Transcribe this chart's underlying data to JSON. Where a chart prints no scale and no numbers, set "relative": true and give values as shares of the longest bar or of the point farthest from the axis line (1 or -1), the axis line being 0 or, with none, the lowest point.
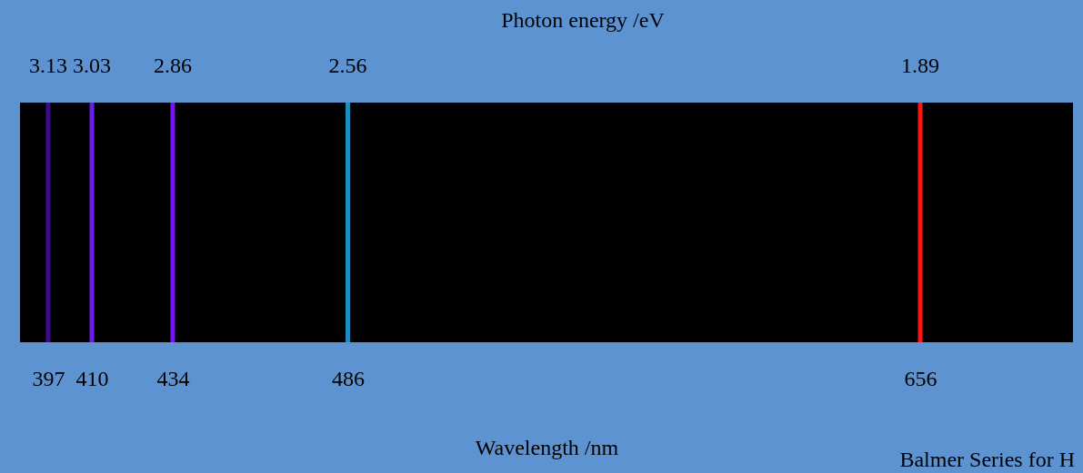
{
  "chart_data": {
    "type": "bar",
    "title": "Photon energy /eV",
    "xlabel": "Wavelength /nm",
    "x": [
      397,
      410,
      434,
      486,
      656
    ],
    "values": [
      1,
      1,
      1,
      1,
      1
    ],
    "colors": [
      "#3c0c8c",
      "#6a1cf0",
      "#7a12ff",
      "#1a8cc0",
      "#ff1414"
    ],
    "relative": true,
    "xlim": [
      390,
      700
    ],
    "xticks": [
      397,
      410,
      434,
      486,
      656
    ],
    "grid": false,
    "annotations": [
      {
        "text": "3.13",
        "x": 397,
        "y": 1
      },
      {
        "text": "3.03",
        "x": 410,
        "y": 1
      },
      {
        "text": "2.86",
        "x": 434,
        "y": 1
      },
      {
        "text": "2.56",
        "x": 486,
        "y": 1
      },
      {
        "text": "1.89",
        "x": 656,
        "y": 1
      },
      "Balmer Series for H"
    ]
  }
}
